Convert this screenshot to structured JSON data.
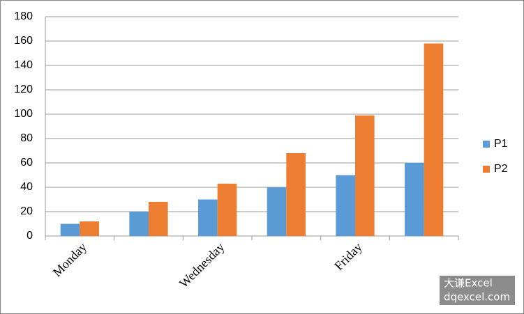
{
  "chart_data": {
    "type": "bar",
    "categories": [
      "Monday",
      null,
      "Wednesday",
      null,
      "Friday",
      null
    ],
    "series": [
      {
        "name": "P1",
        "color": "#5b9bd5",
        "values": [
          10,
          20,
          30,
          40,
          50,
          60
        ]
      },
      {
        "name": "P2",
        "color": "#ed7d31",
        "values": [
          12,
          28,
          43,
          68,
          99,
          158
        ]
      }
    ],
    "ylim": [
      0,
      180
    ],
    "yticks": [
      0,
      20,
      40,
      60,
      80,
      100,
      120,
      140,
      160,
      180
    ],
    "grid": true,
    "legend": "right"
  },
  "watermark": {
    "line1": "大谦Excel",
    "line2": "dqexcel.com"
  }
}
